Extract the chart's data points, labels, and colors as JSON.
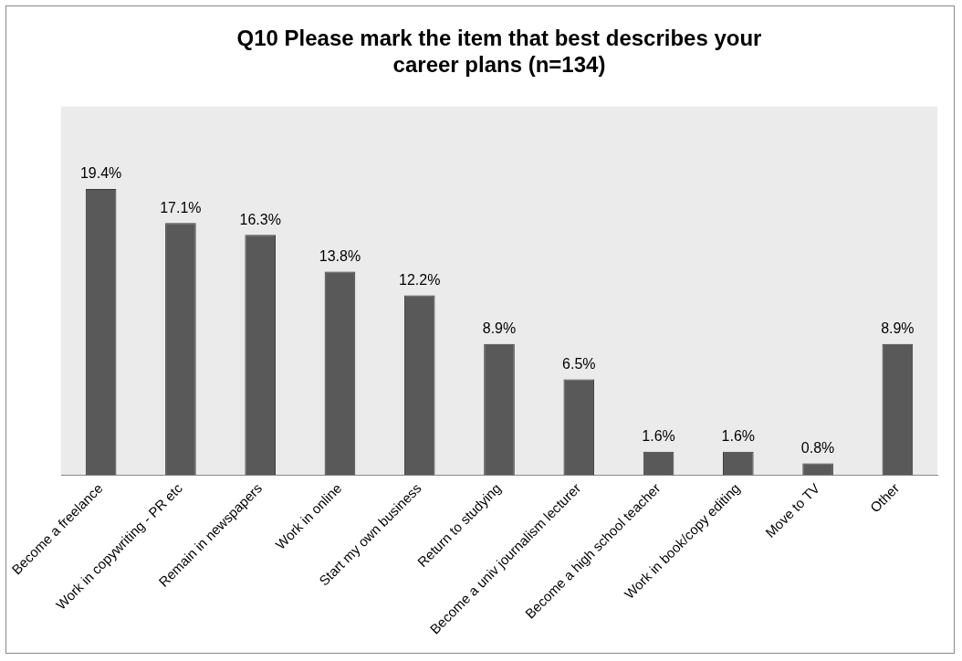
{
  "chart_data": {
    "type": "bar",
    "title": "Q10 Please mark the item that best describes your career plans (n=134)",
    "categories": [
      "Become a freelance",
      "Work in copywriting - PR etc",
      "Remain in newspapers",
      "Work in online",
      "Start my own business",
      "Return to studying",
      "Become a univ journalism lecturer",
      "Become a high school teacher",
      "Work in book/copy editing",
      "Move to TV",
      "Other"
    ],
    "values": [
      19.4,
      17.1,
      16.3,
      13.8,
      12.2,
      8.9,
      6.5,
      1.6,
      1.6,
      0.8,
      8.9
    ],
    "value_labels": [
      "19.4%",
      "17.1%",
      "16.3%",
      "13.8%",
      "12.2%",
      "8.9%",
      "6.5%",
      "1.6%",
      "1.6%",
      "0.8%",
      "8.9%"
    ],
    "color": "#595959",
    "grid": false,
    "legend": false
  }
}
